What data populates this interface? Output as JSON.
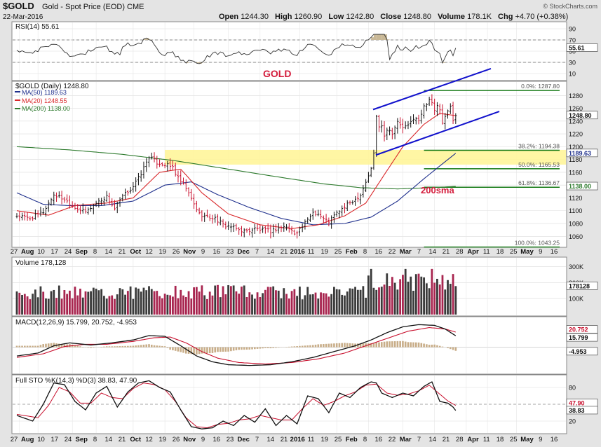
{
  "header": {
    "symbol": "$GOLD",
    "name": "Gold - Spot Price (EOD)",
    "exchange": "CME",
    "date": "22-Mar-2016",
    "open_label": "Open",
    "open": "1244.30",
    "high_label": "High",
    "high": "1260.90",
    "low_label": "Low",
    "low": "1242.80",
    "close_label": "Close",
    "close": "1248.80",
    "volume_label": "Volume",
    "volume": "178.1K",
    "chg_label": "Chg",
    "chg": "+4.70 (+0.38%)",
    "copyright": "© StockCharts.com"
  },
  "colors": {
    "frame": "#e4e4e4",
    "panel": "#ffffff",
    "grid": "#dcdcdc",
    "up": "#111111",
    "down": "#c8102e",
    "ma50": "#1e2f8c",
    "ma20": "#d9282b",
    "ma200": "#2d7a2d",
    "zone": "#fff59a",
    "channel": "#1111cc",
    "fib": "#117711",
    "rsi_fill": "#c9b896",
    "vol_up": "#3a3a3a",
    "vol_down": "#a8254f"
  },
  "annotations": {
    "gold_title": "GOLD",
    "sma_label": "200sma"
  },
  "chart_data": [
    {
      "type": "line",
      "name": "rsi",
      "title": "RSI(14) 55.61",
      "ylim": [
        0,
        100
      ],
      "y_ticks": [
        "90",
        "70",
        "50",
        "30",
        "10"
      ],
      "last_value_label": "55.61",
      "last": 55.61,
      "overbought": 70,
      "oversold": 30
    },
    {
      "type": "candlestick",
      "name": "price",
      "title": "$GOLD (Daily) 1248.80",
      "legend": [
        {
          "label": "MA(50) 1189.63",
          "color": "#1e2f8c"
        },
        {
          "label": "MA(20) 1248.55",
          "color": "#d9282b"
        },
        {
          "label": "MA(200) 1138.00",
          "color": "#2d7a2d"
        }
      ],
      "ylim": [
        1040,
        1300
      ],
      "y_ticks": [
        "1280",
        "1260",
        "1240",
        "1220",
        "1200",
        "1180",
        "1160",
        "1140",
        "1120",
        "1100",
        "1080",
        "1060"
      ],
      "y_tick_values": [
        1280,
        1260,
        1240,
        1220,
        1200,
        1180,
        1160,
        1140,
        1120,
        1100,
        1080,
        1060
      ],
      "price_tag": "1248.80",
      "ma50_tag": "1189.63",
      "ma200_tag": "1138.00",
      "fib_levels": [
        {
          "label": "0.0%: 1287.80",
          "value": 1287.8
        },
        {
          "label": "38.2%: 1194.38",
          "value": 1194.38
        },
        {
          "label": "50.0%: 1165.53",
          "value": 1165.53
        },
        {
          "label": "61.8%: 1136.67",
          "value": 1136.67
        },
        {
          "label": "100.0%: 1043.25",
          "value": 1043.25
        }
      ],
      "resistance_zone": [
        1172,
        1195
      ],
      "closes_key": [
        [
          0,
          1092
        ],
        [
          5,
          1088
        ],
        [
          10,
          1098
        ],
        [
          14,
          1125
        ],
        [
          18,
          1118
        ],
        [
          22,
          1105
        ],
        [
          26,
          1098
        ],
        [
          30,
          1112
        ],
        [
          34,
          1122
        ],
        [
          37,
          1103
        ],
        [
          40,
          1122
        ],
        [
          44,
          1138
        ],
        [
          47,
          1158
        ],
        [
          50,
          1185
        ],
        [
          53,
          1175
        ],
        [
          56,
          1172
        ],
        [
          59,
          1168
        ],
        [
          61,
          1150
        ],
        [
          64,
          1135
        ],
        [
          66,
          1118
        ],
        [
          69,
          1095
        ],
        [
          72,
          1090
        ],
        [
          75,
          1088
        ],
        [
          78,
          1078
        ],
        [
          81,
          1075
        ],
        [
          84,
          1070
        ],
        [
          87,
          1068
        ],
        [
          90,
          1072
        ],
        [
          93,
          1070
        ],
        [
          96,
          1068
        ],
        [
          99,
          1073
        ],
        [
          102,
          1075
        ],
        [
          105,
          1065
        ],
        [
          108,
          1075
        ],
        [
          110,
          1085
        ],
        [
          112,
          1098
        ],
        [
          114,
          1095
        ],
        [
          116,
          1087
        ],
        [
          118,
          1083
        ],
        [
          120,
          1092
        ],
        [
          122,
          1100
        ],
        [
          124,
          1105
        ],
        [
          126,
          1113
        ],
        [
          128,
          1118
        ],
        [
          130,
          1125
        ],
        [
          132,
          1145
        ],
        [
          134,
          1165
        ],
        [
          135,
          1190
        ],
        [
          136,
          1248
        ],
        [
          137,
          1230
        ],
        [
          138,
          1235
        ],
        [
          139,
          1218
        ],
        [
          140,
          1228
        ],
        [
          142,
          1222
        ],
        [
          144,
          1238
        ],
        [
          146,
          1230
        ],
        [
          148,
          1232
        ],
        [
          150,
          1245
        ],
        [
          152,
          1240
        ],
        [
          154,
          1262
        ],
        [
          156,
          1275
        ],
        [
          157,
          1270
        ],
        [
          158,
          1255
        ],
        [
          159,
          1262
        ],
        [
          160,
          1258
        ],
        [
          161,
          1235
        ],
        [
          162,
          1245
        ],
        [
          163,
          1255
        ],
        [
          164,
          1262
        ],
        [
          165,
          1244
        ],
        [
          166,
          1249
        ]
      ],
      "ma20_key": [
        [
          0,
          1100
        ],
        [
          12,
          1093
        ],
        [
          22,
          1108
        ],
        [
          34,
          1112
        ],
        [
          44,
          1120
        ],
        [
          54,
          1160
        ],
        [
          62,
          1165
        ],
        [
          70,
          1128
        ],
        [
          80,
          1095
        ],
        [
          92,
          1078
        ],
        [
          104,
          1072
        ],
        [
          114,
          1078
        ],
        [
          124,
          1092
        ],
        [
          132,
          1112
        ],
        [
          138,
          1150
        ],
        [
          146,
          1200
        ],
        [
          154,
          1235
        ],
        [
          160,
          1252
        ],
        [
          166,
          1248.55
        ]
      ],
      "ma50_key": [
        [
          0,
          1128
        ],
        [
          10,
          1110
        ],
        [
          20,
          1108
        ],
        [
          32,
          1108
        ],
        [
          44,
          1115
        ],
        [
          56,
          1140
        ],
        [
          66,
          1145
        ],
        [
          76,
          1125
        ],
        [
          88,
          1105
        ],
        [
          100,
          1088
        ],
        [
          112,
          1078
        ],
        [
          124,
          1080
        ],
        [
          134,
          1090
        ],
        [
          144,
          1115
        ],
        [
          154,
          1150
        ],
        [
          160,
          1170
        ],
        [
          166,
          1189.63
        ]
      ],
      "ma200_key": [
        [
          0,
          1200
        ],
        [
          20,
          1195
        ],
        [
          40,
          1188
        ],
        [
          60,
          1178
        ],
        [
          80,
          1165
        ],
        [
          100,
          1152
        ],
        [
          116,
          1142
        ],
        [
          130,
          1136
        ],
        [
          144,
          1134
        ],
        [
          156,
          1136
        ],
        [
          166,
          1138
        ]
      ]
    },
    {
      "type": "bar",
      "name": "volume",
      "title": "Volume 178,128",
      "ylim": [
        0,
        350
      ],
      "y_ticks": [
        "300K",
        "200K",
        "100K"
      ],
      "y_tick_values": [
        300,
        200,
        100
      ],
      "last_value_label": "178128",
      "last": 178
    },
    {
      "type": "line",
      "name": "macd",
      "title": "MACD(12,26,9) 15.799, 20.752, -4.953",
      "ylim": [
        -35,
        40
      ],
      "macd_last": 15.799,
      "signal_last": 20.752,
      "hist_last": -4.953,
      "tags": [
        "20.752",
        "15.799",
        "-4.953"
      ],
      "macd_key": [
        [
          0,
          -12
        ],
        [
          8,
          -8
        ],
        [
          14,
          2
        ],
        [
          20,
          6
        ],
        [
          28,
          3
        ],
        [
          36,
          6
        ],
        [
          44,
          10
        ],
        [
          50,
          16
        ],
        [
          56,
          15
        ],
        [
          62,
          2
        ],
        [
          68,
          -12
        ],
        [
          74,
          -20
        ],
        [
          80,
          -24
        ],
        [
          88,
          -25
        ],
        [
          96,
          -24
        ],
        [
          104,
          -20
        ],
        [
          112,
          -14
        ],
        [
          120,
          -6
        ],
        [
          128,
          2
        ],
        [
          134,
          10
        ],
        [
          140,
          20
        ],
        [
          146,
          28
        ],
        [
          152,
          31
        ],
        [
          158,
          30
        ],
        [
          162,
          25
        ],
        [
          166,
          15.799
        ]
      ],
      "signal_key": [
        [
          0,
          -14
        ],
        [
          10,
          -9
        ],
        [
          18,
          1
        ],
        [
          26,
          4
        ],
        [
          34,
          4
        ],
        [
          44,
          8
        ],
        [
          52,
          13
        ],
        [
          58,
          14
        ],
        [
          64,
          6
        ],
        [
          70,
          -6
        ],
        [
          76,
          -15
        ],
        [
          84,
          -21
        ],
        [
          94,
          -23
        ],
        [
          104,
          -21
        ],
        [
          114,
          -16
        ],
        [
          124,
          -8
        ],
        [
          132,
          2
        ],
        [
          140,
          12
        ],
        [
          148,
          22
        ],
        [
          156,
          27
        ],
        [
          162,
          25
        ],
        [
          166,
          20.752
        ]
      ]
    },
    {
      "type": "line",
      "name": "stochastic",
      "title": "Full STO %K(14,3) %D(3) 38.83, 47.90",
      "ylim": [
        0,
        100
      ],
      "y_ticks": [
        "80",
        "20"
      ],
      "tags": [
        "47.90",
        "38.83"
      ],
      "k_key": [
        [
          0,
          30
        ],
        [
          6,
          20
        ],
        [
          10,
          50
        ],
        [
          14,
          88
        ],
        [
          18,
          85
        ],
        [
          22,
          55
        ],
        [
          26,
          40
        ],
        [
          30,
          70
        ],
        [
          34,
          82
        ],
        [
          38,
          45
        ],
        [
          42,
          72
        ],
        [
          46,
          88
        ],
        [
          50,
          92
        ],
        [
          54,
          80
        ],
        [
          58,
          72
        ],
        [
          62,
          40
        ],
        [
          66,
          10
        ],
        [
          70,
          6
        ],
        [
          74,
          8
        ],
        [
          78,
          20
        ],
        [
          82,
          12
        ],
        [
          86,
          30
        ],
        [
          90,
          18
        ],
        [
          94,
          42
        ],
        [
          98,
          12
        ],
        [
          102,
          30
        ],
        [
          106,
          15
        ],
        [
          110,
          65
        ],
        [
          114,
          60
        ],
        [
          118,
          35
        ],
        [
          122,
          70
        ],
        [
          126,
          62
        ],
        [
          130,
          80
        ],
        [
          134,
          90
        ],
        [
          136,
          88
        ],
        [
          138,
          70
        ],
        [
          142,
          62
        ],
        [
          146,
          70
        ],
        [
          150,
          65
        ],
        [
          154,
          82
        ],
        [
          157,
          90
        ],
        [
          160,
          55
        ],
        [
          163,
          52
        ],
        [
          165,
          45
        ],
        [
          166,
          38.83
        ]
      ],
      "d_key": [
        [
          0,
          32
        ],
        [
          8,
          26
        ],
        [
          12,
          48
        ],
        [
          16,
          80
        ],
        [
          20,
          72
        ],
        [
          24,
          52
        ],
        [
          28,
          52
        ],
        [
          32,
          70
        ],
        [
          36,
          62
        ],
        [
          40,
          60
        ],
        [
          44,
          78
        ],
        [
          48,
          88
        ],
        [
          52,
          85
        ],
        [
          56,
          76
        ],
        [
          60,
          55
        ],
        [
          64,
          26
        ],
        [
          68,
          10
        ],
        [
          72,
          8
        ],
        [
          76,
          14
        ],
        [
          80,
          16
        ],
        [
          84,
          22
        ],
        [
          88,
          24
        ],
        [
          92,
          30
        ],
        [
          96,
          26
        ],
        [
          100,
          22
        ],
        [
          104,
          22
        ],
        [
          108,
          42
        ],
        [
          112,
          60
        ],
        [
          116,
          48
        ],
        [
          120,
          55
        ],
        [
          124,
          65
        ],
        [
          128,
          72
        ],
        [
          132,
          84
        ],
        [
          136,
          86
        ],
        [
          140,
          70
        ],
        [
          144,
          66
        ],
        [
          148,
          68
        ],
        [
          152,
          74
        ],
        [
          156,
          84
        ],
        [
          160,
          68
        ],
        [
          163,
          56
        ],
        [
          166,
          47.9
        ]
      ]
    }
  ],
  "x_axis": {
    "labels": [
      "27",
      "Aug",
      "10",
      "17",
      "24",
      "Sep",
      "8",
      "14",
      "21",
      "Oct",
      "12",
      "19",
      "26",
      "Nov",
      "9",
      "16",
      "23",
      "Dec",
      "7",
      "14",
      "21",
      "2016",
      "11",
      "19",
      "25",
      "Feb",
      "8",
      "16",
      "22",
      "Mar",
      "7",
      "14",
      "21",
      "28",
      "Apr",
      "11",
      "18",
      "25",
      "May",
      "9",
      "16"
    ]
  }
}
